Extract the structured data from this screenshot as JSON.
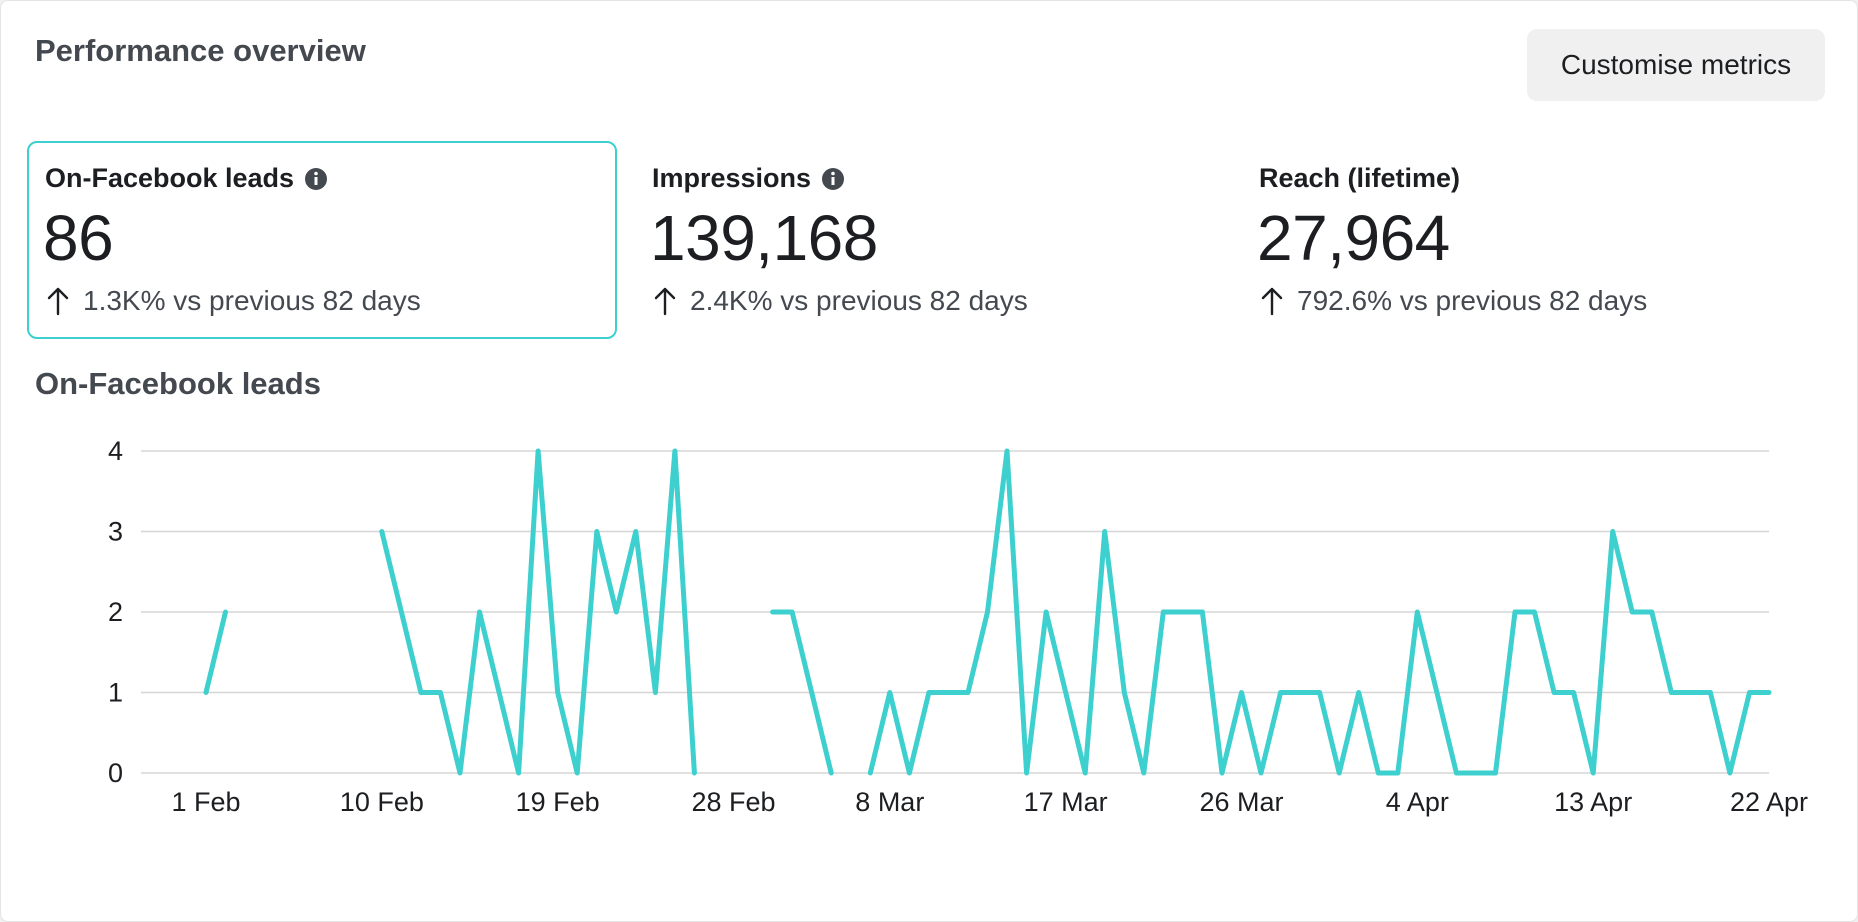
{
  "header": {
    "title": "Performance overview",
    "customise_label": "Customise metrics"
  },
  "metrics": [
    {
      "title": "On-Facebook leads",
      "value": "86",
      "change": "1.3K% vs previous 82 days",
      "has_info": true,
      "selected": true
    },
    {
      "title": "Impressions",
      "value": "139,168",
      "change": "2.4K% vs previous 82 days",
      "has_info": true,
      "selected": false
    },
    {
      "title": "Reach (lifetime)",
      "value": "27,964",
      "change": "792.6% vs previous 82 days",
      "has_info": false,
      "selected": false
    }
  ],
  "icons": {
    "info": "info-icon",
    "trend": "arrow-up-icon"
  },
  "colors": {
    "series": "#3ecfcf",
    "selected_border": "#3ecfcf",
    "grid": "#d6d6d6"
  },
  "chart_title": "On-Facebook leads",
  "chart_data": {
    "type": "line",
    "ylim": [
      0,
      4
    ],
    "yticks": [
      0,
      1,
      2,
      3,
      4
    ],
    "xticks": [
      "1 Feb",
      "10 Feb",
      "19 Feb",
      "28 Feb",
      "8 Mar",
      "17 Mar",
      "26 Mar",
      "4 Apr",
      "13 Apr",
      "22 Apr"
    ],
    "grid": true,
    "x": [
      "1 Feb",
      "2 Feb",
      "3 Feb",
      "4 Feb",
      "5 Feb",
      "6 Feb",
      "7 Feb",
      "8 Feb",
      "9 Feb",
      "10 Feb",
      "11 Feb",
      "12 Feb",
      "13 Feb",
      "14 Feb",
      "15 Feb",
      "16 Feb",
      "17 Feb",
      "18 Feb",
      "19 Feb",
      "20 Feb",
      "21 Feb",
      "22 Feb",
      "23 Feb",
      "24 Feb",
      "25 Feb",
      "26 Feb",
      "27 Feb",
      "28 Feb",
      "1 Mar",
      "2 Mar",
      "3 Mar",
      "4 Mar",
      "5 Mar",
      "6 Mar",
      "7 Mar",
      "8 Mar",
      "9 Mar",
      "10 Mar",
      "11 Mar",
      "12 Mar",
      "13 Mar",
      "14 Mar",
      "15 Mar",
      "16 Mar",
      "17 Mar",
      "18 Mar",
      "19 Mar",
      "20 Mar",
      "21 Mar",
      "22 Mar",
      "23 Mar",
      "24 Mar",
      "25 Mar",
      "26 Mar",
      "27 Mar",
      "28 Mar",
      "29 Mar",
      "30 Mar",
      "31 Mar",
      "1 Apr",
      "2 Apr",
      "3 Apr",
      "4 Apr",
      "5 Apr",
      "6 Apr",
      "7 Apr",
      "8 Apr",
      "9 Apr",
      "10 Apr",
      "11 Apr",
      "12 Apr",
      "13 Apr",
      "14 Apr",
      "15 Apr",
      "16 Apr",
      "17 Apr",
      "18 Apr",
      "19 Apr",
      "20 Apr",
      "21 Apr",
      "22 Apr"
    ],
    "series": [
      {
        "values": [
          1,
          2,
          null,
          null,
          null,
          null,
          null,
          null,
          null,
          3,
          2,
          1,
          1,
          0,
          2,
          1,
          0,
          4,
          1,
          0,
          3,
          2,
          3,
          1,
          4,
          0,
          null,
          null,
          null,
          2,
          2,
          1,
          0,
          null,
          0,
          1,
          0,
          1,
          1,
          1,
          2,
          4,
          0,
          2,
          1,
          0,
          3,
          1,
          0,
          2,
          2,
          2,
          0,
          1,
          0,
          1,
          1,
          1,
          0,
          1,
          0,
          0,
          2,
          1,
          0,
          0,
          0,
          2,
          2,
          1,
          1,
          0,
          3,
          2,
          2,
          1,
          1,
          1,
          0,
          1,
          1
        ]
      }
    ]
  }
}
